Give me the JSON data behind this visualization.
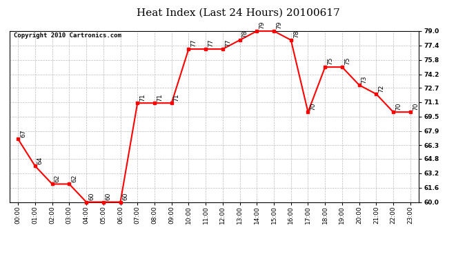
{
  "title": "Heat Index (Last 24 Hours) 20100617",
  "copyright": "Copyright 2010 Cartronics.com",
  "hours": [
    "00:00",
    "01:00",
    "02:00",
    "03:00",
    "04:00",
    "05:00",
    "06:00",
    "07:00",
    "08:00",
    "09:00",
    "10:00",
    "11:00",
    "12:00",
    "13:00",
    "14:00",
    "15:00",
    "16:00",
    "17:00",
    "18:00",
    "19:00",
    "20:00",
    "21:00",
    "22:00",
    "23:00"
  ],
  "values": [
    67,
    64,
    62,
    62,
    60,
    60,
    60,
    71,
    71,
    71,
    77,
    77,
    77,
    78,
    79,
    79,
    78,
    70,
    75,
    75,
    73,
    72,
    70,
    70
  ],
  "ylim_min": 60.0,
  "ylim_max": 79.0,
  "yticks": [
    60.0,
    61.6,
    63.2,
    64.8,
    66.3,
    67.9,
    69.5,
    71.1,
    72.7,
    74.2,
    75.8,
    77.4,
    79.0
  ],
  "line_color": "red",
  "marker": "s",
  "marker_size": 3,
  "marker_color": "red",
  "bg_color": "white",
  "grid_color": "#bbbbbb",
  "title_fontsize": 11,
  "copyright_fontsize": 6.5,
  "label_fontsize": 6.5,
  "tick_fontsize": 6.5
}
